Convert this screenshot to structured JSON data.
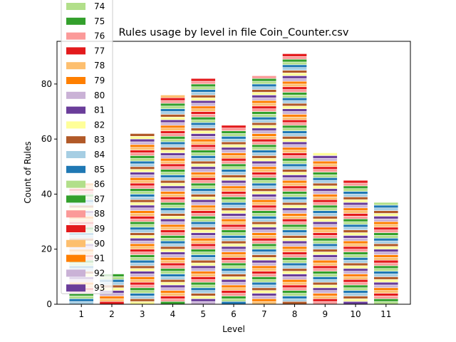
{
  "chart_data": {
    "type": "bar",
    "title": "Rules usage by level in file Coin_Counter.csv",
    "xlabel": "Level",
    "ylabel": "Count of Rules",
    "categories": [
      "1",
      "2",
      "3",
      "4",
      "5",
      "6",
      "7",
      "8",
      "9",
      "10",
      "11"
    ],
    "values": [
      44,
      11,
      62,
      76,
      82,
      65,
      83,
      91,
      55,
      45,
      37
    ],
    "ylim": [
      0,
      95.5
    ],
    "yticks": [
      0,
      20,
      40,
      60,
      80
    ],
    "grid": false,
    "stacked": true,
    "segment_colors": [
      "#a6cee3",
      "#1f78b4",
      "#b2df8a",
      "#33a02c",
      "#fb9a99",
      "#e31a1c",
      "#fdbf6f",
      "#ff7f00",
      "#cab2d6",
      "#6a3d9a",
      "#ffff99",
      "#b15928"
    ],
    "legend": {
      "placement": "upper-left",
      "entries": [
        {
          "label": "74",
          "color": "#b2df8a"
        },
        {
          "label": "75",
          "color": "#33a02c"
        },
        {
          "label": "76",
          "color": "#fb9a99"
        },
        {
          "label": "77",
          "color": "#e31a1c"
        },
        {
          "label": "78",
          "color": "#fdbf6f"
        },
        {
          "label": "79",
          "color": "#ff7f00"
        },
        {
          "label": "80",
          "color": "#cab2d6"
        },
        {
          "label": "81",
          "color": "#6a3d9a"
        },
        {
          "label": "82",
          "color": "#ffff99"
        },
        {
          "label": "83",
          "color": "#b15928"
        },
        {
          "label": "84",
          "color": "#a6cee3"
        },
        {
          "label": "85",
          "color": "#1f78b4"
        },
        {
          "label": "86",
          "color": "#b2df8a"
        },
        {
          "label": "87",
          "color": "#33a02c"
        },
        {
          "label": "88",
          "color": "#fb9a99"
        },
        {
          "label": "89",
          "color": "#e31a1c"
        },
        {
          "label": "90",
          "color": "#fdbf6f"
        },
        {
          "label": "91",
          "color": "#ff7f00"
        },
        {
          "label": "92",
          "color": "#cab2d6"
        },
        {
          "label": "93",
          "color": "#6a3d9a"
        }
      ]
    }
  }
}
